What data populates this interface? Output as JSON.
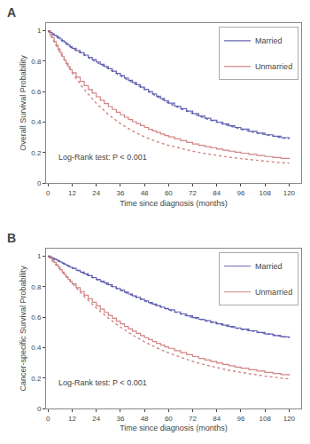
{
  "chart_data": [
    {
      "type": "line",
      "title": "A",
      "x_label": "Time since diagnosis (months)",
      "y_label": "Overall Survival Probability",
      "annotations": [
        "Log-Rank test: P < 0.001"
      ],
      "xlim": [
        -1,
        126
      ],
      "ylim": [
        0.0,
        1.05
      ],
      "xticks": [
        0,
        12,
        24,
        36,
        48,
        60,
        72,
        84,
        96,
        108,
        120
      ],
      "yticks": [
        0.0,
        0.2,
        0.4,
        0.6,
        0.8,
        1.0
      ],
      "grid": false,
      "legend": "upper right",
      "series": [
        {
          "name": "Married",
          "color": "#5555aa",
          "type": "step",
          "line_style": "solid",
          "x": [
            0,
            1,
            2,
            3,
            4,
            5,
            6,
            7,
            8,
            9,
            10,
            11,
            12,
            14,
            16,
            18,
            20,
            22,
            24,
            26,
            28,
            30,
            32,
            34,
            36,
            38,
            40,
            42,
            44,
            46,
            48,
            50,
            52,
            54,
            56,
            58,
            60,
            63,
            66,
            69,
            72,
            75,
            78,
            81,
            84,
            87,
            90,
            93,
            96,
            100,
            104,
            108,
            112,
            116,
            120
          ],
          "values": [
            1.0,
            0.99,
            0.98,
            0.97,
            0.965,
            0.955,
            0.945,
            0.935,
            0.925,
            0.915,
            0.905,
            0.895,
            0.885,
            0.87,
            0.855,
            0.84,
            0.825,
            0.81,
            0.795,
            0.78,
            0.765,
            0.75,
            0.735,
            0.72,
            0.705,
            0.69,
            0.675,
            0.66,
            0.645,
            0.63,
            0.615,
            0.6,
            0.585,
            0.57,
            0.555,
            0.54,
            0.525,
            0.505,
            0.488,
            0.472,
            0.456,
            0.44,
            0.426,
            0.412,
            0.4,
            0.388,
            0.376,
            0.365,
            0.354,
            0.34,
            0.328,
            0.317,
            0.307,
            0.298,
            0.29
          ]
        },
        {
          "name": "Unmarried",
          "color": "#cc7777",
          "type": "step",
          "line_style": "solid",
          "x": [
            0,
            1,
            2,
            3,
            4,
            5,
            6,
            7,
            8,
            9,
            10,
            11,
            12,
            14,
            16,
            18,
            20,
            22,
            24,
            26,
            28,
            30,
            32,
            34,
            36,
            38,
            40,
            42,
            44,
            46,
            48,
            50,
            52,
            54,
            56,
            58,
            60,
            63,
            66,
            69,
            72,
            75,
            78,
            81,
            84,
            87,
            90,
            93,
            96,
            100,
            104,
            108,
            112,
            116,
            120
          ],
          "values": [
            1.0,
            0.975,
            0.955,
            0.93,
            0.905,
            0.88,
            0.855,
            0.83,
            0.808,
            0.786,
            0.764,
            0.744,
            0.724,
            0.695,
            0.667,
            0.64,
            0.614,
            0.59,
            0.566,
            0.543,
            0.522,
            0.502,
            0.483,
            0.465,
            0.448,
            0.432,
            0.417,
            0.403,
            0.39,
            0.377,
            0.365,
            0.353,
            0.342,
            0.332,
            0.322,
            0.312,
            0.303,
            0.29,
            0.278,
            0.267,
            0.257,
            0.248,
            0.239,
            0.231,
            0.223,
            0.216,
            0.209,
            0.202,
            0.196,
            0.188,
            0.181,
            0.174,
            0.168,
            0.162,
            0.157
          ]
        },
        {
          "name": "Married",
          "color": "#5555aa",
          "type": "line",
          "line_style": "dotted",
          "x": [
            0,
            6,
            12,
            18,
            24,
            30,
            36,
            42,
            48,
            54,
            60,
            66,
            72,
            78,
            84,
            90,
            96,
            102,
            108,
            114,
            120
          ],
          "values": [
            1.0,
            0.945,
            0.885,
            0.84,
            0.795,
            0.75,
            0.705,
            0.66,
            0.615,
            0.57,
            0.525,
            0.488,
            0.456,
            0.426,
            0.4,
            0.376,
            0.354,
            0.334,
            0.317,
            0.303,
            0.29
          ]
        },
        {
          "name": "Unmarried",
          "color": "#cc7777",
          "type": "line",
          "line_style": "dotted",
          "x": [
            0,
            6,
            12,
            18,
            24,
            30,
            36,
            42,
            48,
            54,
            60,
            66,
            72,
            78,
            84,
            90,
            96,
            102,
            108,
            114,
            120
          ],
          "values": [
            1.0,
            0.855,
            0.724,
            0.614,
            0.524,
            0.45,
            0.39,
            0.342,
            0.303,
            0.272,
            0.247,
            0.226,
            0.209,
            0.194,
            0.181,
            0.17,
            0.16,
            0.151,
            0.143,
            0.136,
            0.13
          ]
        }
      ]
    },
    {
      "type": "line",
      "title": "B",
      "x_label": "Time since diagnosis (months)",
      "y_label": "Cancer-specific Survival Probability",
      "annotations": [
        "Log-Rank test: P < 0.001"
      ],
      "xlim": [
        -1,
        126
      ],
      "ylim": [
        0.0,
        1.05
      ],
      "xticks": [
        0,
        12,
        24,
        36,
        48,
        60,
        72,
        84,
        96,
        108,
        120
      ],
      "yticks": [
        0.0,
        0.2,
        0.4,
        0.6,
        0.8,
        1.0
      ],
      "grid": false,
      "legend": "upper right",
      "series": [
        {
          "name": "Married",
          "color": "#5555aa",
          "type": "step",
          "line_style": "solid",
          "x": [
            0,
            1,
            2,
            3,
            4,
            5,
            6,
            7,
            8,
            9,
            10,
            11,
            12,
            14,
            16,
            18,
            20,
            22,
            24,
            26,
            28,
            30,
            32,
            34,
            36,
            38,
            40,
            42,
            44,
            46,
            48,
            50,
            52,
            54,
            56,
            58,
            60,
            63,
            66,
            69,
            72,
            75,
            78,
            81,
            84,
            87,
            90,
            93,
            96,
            100,
            104,
            108,
            112,
            116,
            120
          ],
          "values": [
            1.0,
            0.995,
            0.988,
            0.982,
            0.976,
            0.969,
            0.962,
            0.955,
            0.948,
            0.941,
            0.934,
            0.927,
            0.92,
            0.908,
            0.896,
            0.884,
            0.872,
            0.86,
            0.848,
            0.836,
            0.824,
            0.812,
            0.8,
            0.788,
            0.776,
            0.764,
            0.752,
            0.74,
            0.729,
            0.718,
            0.707,
            0.696,
            0.686,
            0.676,
            0.666,
            0.657,
            0.648,
            0.634,
            0.621,
            0.609,
            0.597,
            0.586,
            0.576,
            0.566,
            0.556,
            0.547,
            0.538,
            0.529,
            0.521,
            0.51,
            0.499,
            0.489,
            0.479,
            0.47,
            0.461
          ]
        },
        {
          "name": "Unmarried",
          "color": "#cc7777",
          "type": "step",
          "line_style": "solid",
          "x": [
            0,
            1,
            2,
            3,
            4,
            5,
            6,
            7,
            8,
            9,
            10,
            11,
            12,
            14,
            16,
            18,
            20,
            22,
            24,
            26,
            28,
            30,
            32,
            34,
            36,
            38,
            40,
            42,
            44,
            46,
            48,
            50,
            52,
            54,
            56,
            58,
            60,
            63,
            66,
            69,
            72,
            75,
            78,
            81,
            84,
            87,
            90,
            93,
            96,
            100,
            104,
            108,
            112,
            116,
            120
          ],
          "values": [
            1.0,
            0.988,
            0.975,
            0.96,
            0.945,
            0.929,
            0.912,
            0.896,
            0.88,
            0.864,
            0.848,
            0.833,
            0.818,
            0.793,
            0.768,
            0.744,
            0.72,
            0.697,
            0.674,
            0.652,
            0.631,
            0.611,
            0.592,
            0.574,
            0.556,
            0.539,
            0.523,
            0.508,
            0.493,
            0.479,
            0.465,
            0.452,
            0.44,
            0.428,
            0.416,
            0.405,
            0.395,
            0.38,
            0.366,
            0.353,
            0.341,
            0.329,
            0.318,
            0.308,
            0.298,
            0.289,
            0.28,
            0.272,
            0.264,
            0.254,
            0.245,
            0.237,
            0.229,
            0.222,
            0.215
          ]
        },
        {
          "name": "Married",
          "color": "#5555aa",
          "type": "line",
          "line_style": "dotted",
          "x": [
            0,
            6,
            12,
            18,
            24,
            30,
            36,
            42,
            48,
            54,
            60,
            66,
            72,
            78,
            84,
            90,
            96,
            102,
            108,
            114,
            120
          ],
          "values": [
            1.0,
            0.962,
            0.92,
            0.884,
            0.848,
            0.812,
            0.776,
            0.74,
            0.707,
            0.676,
            0.648,
            0.621,
            0.597,
            0.576,
            0.556,
            0.538,
            0.521,
            0.506,
            0.492,
            0.479,
            0.467
          ]
        },
        {
          "name": "Unmarried",
          "color": "#cc7777",
          "type": "line",
          "line_style": "dotted",
          "x": [
            0,
            6,
            12,
            18,
            24,
            30,
            36,
            42,
            48,
            54,
            60,
            66,
            72,
            78,
            84,
            90,
            96,
            102,
            108,
            114,
            120
          ],
          "values": [
            1.0,
            0.912,
            0.818,
            0.735,
            0.66,
            0.594,
            0.535,
            0.483,
            0.438,
            0.399,
            0.365,
            0.335,
            0.309,
            0.287,
            0.268,
            0.251,
            0.237,
            0.224,
            0.213,
            0.203,
            0.194
          ]
        }
      ]
    }
  ]
}
